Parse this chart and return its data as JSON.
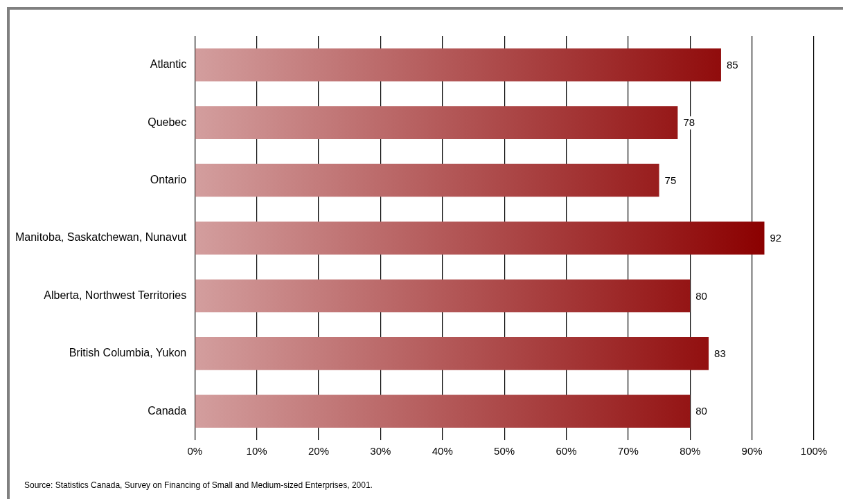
{
  "chart_data": {
    "type": "bar",
    "orientation": "horizontal",
    "categories": [
      "Atlantic",
      "Quebec",
      "Ontario",
      "Manitoba, Saskatchewan, Nunavut",
      "Alberta, Northwest Territories",
      "British Columbia, Yukon",
      "Canada"
    ],
    "values": [
      85,
      78,
      75,
      92,
      80,
      83,
      80
    ],
    "color": "#8b0000",
    "xlim": [
      0,
      100
    ],
    "xticks": [
      {
        "value": 0,
        "label": "0%"
      },
      {
        "value": 10,
        "label": "10%"
      },
      {
        "value": 20,
        "label": "20%"
      },
      {
        "value": 30,
        "label": "30%"
      },
      {
        "value": 40,
        "label": "40%"
      },
      {
        "value": 50,
        "label": "50%"
      },
      {
        "value": 60,
        "label": "60%"
      },
      {
        "value": 70,
        "label": "70%"
      },
      {
        "value": 80,
        "label": "80%"
      },
      {
        "value": 90,
        "label": "90%"
      },
      {
        "value": 100,
        "label": "100%"
      }
    ],
    "grid": "x",
    "data_labels": true,
    "annotations": [
      "Source: Statistics Canada, Survey on Financing of Small and Medium-sized Enterprises, 2001."
    ]
  }
}
